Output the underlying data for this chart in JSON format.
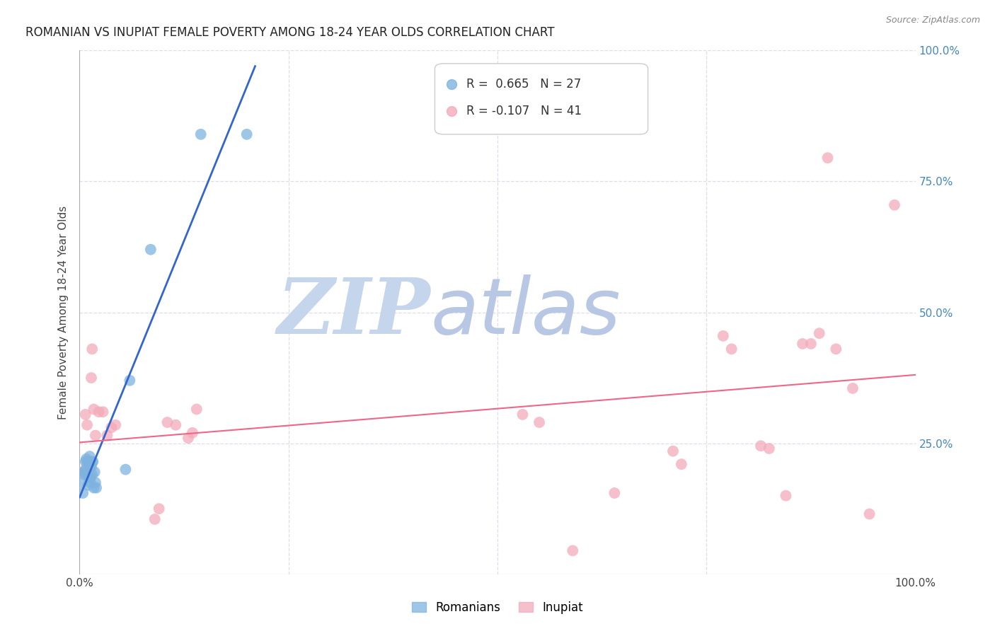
{
  "title": "ROMANIAN VS INUPIAT FEMALE POVERTY AMONG 18-24 YEAR OLDS CORRELATION CHART",
  "source": "Source: ZipAtlas.com",
  "ylabel": "Female Poverty Among 18-24 Year Olds",
  "xlim": [
    0,
    1
  ],
  "ylim": [
    0,
    1
  ],
  "romanian_R": 0.665,
  "romanian_N": 27,
  "inupiat_R": -0.107,
  "inupiat_N": 41,
  "romanian_color": "#7EB3E0",
  "inupiat_color": "#F4AABB",
  "romanian_line_color": "#3366CC",
  "inupiat_line_color": "#EE6688",
  "background_color": "#FFFFFF",
  "grid_color": "#DDDDEE",
  "romanians_x": [
    0.003,
    0.004,
    0.005,
    0.006,
    0.007,
    0.007,
    0.008,
    0.009,
    0.01,
    0.01,
    0.011,
    0.012,
    0.013,
    0.013,
    0.014,
    0.015,
    0.015,
    0.016,
    0.017,
    0.018,
    0.019,
    0.02,
    0.055,
    0.06,
    0.085,
    0.145,
    0.2
  ],
  "romanians_y": [
    0.175,
    0.155,
    0.195,
    0.19,
    0.2,
    0.215,
    0.22,
    0.215,
    0.19,
    0.17,
    0.185,
    0.225,
    0.185,
    0.175,
    0.205,
    0.215,
    0.19,
    0.215,
    0.165,
    0.195,
    0.175,
    0.165,
    0.2,
    0.37,
    0.62,
    0.84,
    0.84
  ],
  "inupiat_x": [
    0.004,
    0.007,
    0.009,
    0.011,
    0.012,
    0.013,
    0.014,
    0.015,
    0.017,
    0.019,
    0.023,
    0.028,
    0.033,
    0.038,
    0.043,
    0.09,
    0.095,
    0.105,
    0.115,
    0.13,
    0.135,
    0.14,
    0.53,
    0.55,
    0.59,
    0.64,
    0.71,
    0.72,
    0.77,
    0.78,
    0.815,
    0.825,
    0.845,
    0.865,
    0.875,
    0.885,
    0.895,
    0.905,
    0.925,
    0.945,
    0.975
  ],
  "inupiat_y": [
    0.195,
    0.305,
    0.285,
    0.215,
    0.21,
    0.205,
    0.375,
    0.43,
    0.315,
    0.265,
    0.31,
    0.31,
    0.265,
    0.28,
    0.285,
    0.105,
    0.125,
    0.29,
    0.285,
    0.26,
    0.27,
    0.315,
    0.305,
    0.29,
    0.045,
    0.155,
    0.235,
    0.21,
    0.455,
    0.43,
    0.245,
    0.24,
    0.15,
    0.44,
    0.44,
    0.46,
    0.795,
    0.43,
    0.355,
    0.115,
    0.705
  ],
  "zip_color1": "#C8D8F0",
  "zip_color2": "#B0C4E0",
  "atlas_color": "#C0CCE8"
}
